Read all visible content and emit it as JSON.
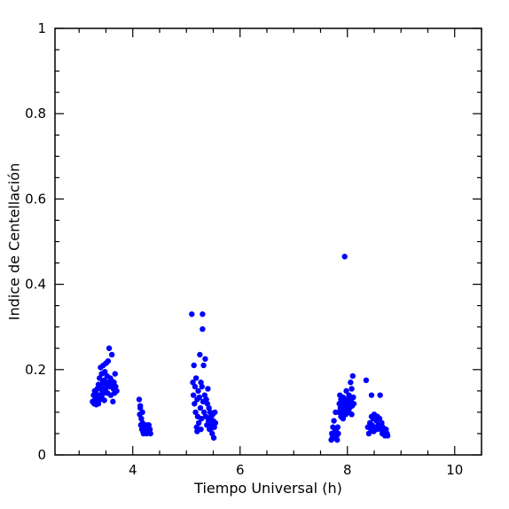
{
  "chart_data": {
    "type": "scatter",
    "xlabel": "Tiempo Universal (h)",
    "ylabel": "Indice de Centellación",
    "xlim": [
      2.55,
      10.5
    ],
    "ylim": [
      0,
      1
    ],
    "x_ticks": [
      4,
      6,
      8,
      10
    ],
    "y_ticks": [
      0,
      0.2,
      0.4,
      0.6,
      0.8,
      1
    ],
    "x_tick_labels": [
      "4",
      "6",
      "8",
      "10"
    ],
    "y_tick_labels": [
      "0",
      "0.2",
      "0.4",
      "0.6",
      "0.8",
      "1"
    ],
    "grid": false,
    "legend": "none",
    "marker_color": "#0000ff",
    "series": [
      {
        "points": [
          [
            3.25,
            0.125
          ],
          [
            3.27,
            0.14
          ],
          [
            3.28,
            0.12
          ],
          [
            3.29,
            0.15
          ],
          [
            3.3,
            0.13
          ],
          [
            3.31,
            0.145
          ],
          [
            3.32,
            0.118
          ],
          [
            3.33,
            0.135
          ],
          [
            3.34,
            0.155
          ],
          [
            3.35,
            0.125
          ],
          [
            3.36,
            0.165
          ],
          [
            3.37,
            0.14
          ],
          [
            3.38,
            0.18
          ],
          [
            3.39,
            0.13
          ],
          [
            3.4,
            0.205
          ],
          [
            3.41,
            0.16
          ],
          [
            3.42,
            0.19
          ],
          [
            3.43,
            0.15
          ],
          [
            3.44,
            0.17
          ],
          [
            3.45,
            0.21
          ],
          [
            3.46,
            0.145
          ],
          [
            3.47,
            0.175
          ],
          [
            3.48,
            0.195
          ],
          [
            3.49,
            0.155
          ],
          [
            3.5,
            0.215
          ],
          [
            3.51,
            0.165
          ],
          [
            3.52,
            0.185
          ],
          [
            3.53,
            0.145
          ],
          [
            3.54,
            0.22
          ],
          [
            3.55,
            0.17
          ],
          [
            3.56,
            0.25
          ],
          [
            3.57,
            0.16
          ],
          [
            3.58,
            0.18
          ],
          [
            3.59,
            0.14
          ],
          [
            3.6,
            0.175
          ],
          [
            3.61,
            0.235
          ],
          [
            3.62,
            0.165
          ],
          [
            3.63,
            0.125
          ],
          [
            3.64,
            0.155
          ],
          [
            3.65,
            0.17
          ],
          [
            3.66,
            0.145
          ],
          [
            3.67,
            0.19
          ],
          [
            3.68,
            0.16
          ],
          [
            3.7,
            0.15
          ],
          [
            3.36,
            0.12
          ],
          [
            3.42,
            0.135
          ],
          [
            3.47,
            0.128
          ],
          [
            4.12,
            0.13
          ],
          [
            4.13,
            0.095
          ],
          [
            4.14,
            0.11
          ],
          [
            4.15,
            0.07
          ],
          [
            4.16,
            0.085
          ],
          [
            4.17,
            0.06
          ],
          [
            4.18,
            0.075
          ],
          [
            4.19,
            0.055
          ],
          [
            4.2,
            0.065
          ],
          [
            4.22,
            0.055
          ],
          [
            4.23,
            0.07
          ],
          [
            4.25,
            0.06
          ],
          [
            4.26,
            0.05
          ],
          [
            4.28,
            0.065
          ],
          [
            4.29,
            0.055
          ],
          [
            4.3,
            0.07
          ],
          [
            4.32,
            0.06
          ],
          [
            4.33,
            0.05
          ],
          [
            4.14,
            0.115
          ],
          [
            4.18,
            0.1
          ],
          [
            4.2,
            0.05
          ],
          [
            4.27,
            0.07
          ],
          [
            5.1,
            0.33
          ],
          [
            5.12,
            0.17
          ],
          [
            5.13,
            0.14
          ],
          [
            5.14,
            0.21
          ],
          [
            5.15,
            0.12
          ],
          [
            5.16,
            0.16
          ],
          [
            5.17,
            0.1
          ],
          [
            5.18,
            0.18
          ],
          [
            5.19,
            0.065
          ],
          [
            5.2,
            0.13
          ],
          [
            5.21,
            0.09
          ],
          [
            5.22,
            0.15
          ],
          [
            5.23,
            0.075
          ],
          [
            5.24,
            0.135
          ],
          [
            5.25,
            0.235
          ],
          [
            5.26,
            0.11
          ],
          [
            5.27,
            0.17
          ],
          [
            5.28,
            0.085
          ],
          [
            5.29,
            0.16
          ],
          [
            5.3,
            0.33
          ],
          [
            5.3,
            0.295
          ],
          [
            5.31,
            0.125
          ],
          [
            5.32,
            0.21
          ],
          [
            5.33,
            0.1
          ],
          [
            5.34,
            0.14
          ],
          [
            5.35,
            0.225
          ],
          [
            5.36,
            0.09
          ],
          [
            5.37,
            0.13
          ],
          [
            5.38,
            0.07
          ],
          [
            5.39,
            0.12
          ],
          [
            5.4,
            0.155
          ],
          [
            5.41,
            0.08
          ],
          [
            5.42,
            0.11
          ],
          [
            5.43,
            0.06
          ],
          [
            5.44,
            0.1
          ],
          [
            5.45,
            0.085
          ],
          [
            5.46,
            0.09
          ],
          [
            5.47,
            0.07
          ],
          [
            5.48,
            0.05
          ],
          [
            5.49,
            0.095
          ],
          [
            5.5,
            0.08
          ],
          [
            5.51,
            0.04
          ],
          [
            5.52,
            0.065
          ],
          [
            5.53,
            0.1
          ],
          [
            5.54,
            0.075
          ],
          [
            5.2,
            0.055
          ],
          [
            5.27,
            0.06
          ],
          [
            5.45,
            0.06
          ],
          [
            7.7,
            0.035
          ],
          [
            7.71,
            0.05
          ],
          [
            7.72,
            0.04
          ],
          [
            7.73,
            0.065
          ],
          [
            7.74,
            0.045
          ],
          [
            7.75,
            0.08
          ],
          [
            7.76,
            0.04
          ],
          [
            7.77,
            0.055
          ],
          [
            7.78,
            0.1
          ],
          [
            7.79,
            0.06
          ],
          [
            7.8,
            0.045
          ],
          [
            7.81,
            0.035
          ],
          [
            7.82,
            0.065
          ],
          [
            7.83,
            0.05
          ],
          [
            7.84,
            0.1
          ],
          [
            7.85,
            0.12
          ],
          [
            7.86,
            0.14
          ],
          [
            7.87,
            0.11
          ],
          [
            7.88,
            0.13
          ],
          [
            7.89,
            0.1
          ],
          [
            7.9,
            0.125
          ],
          [
            7.91,
            0.115
          ],
          [
            7.92,
            0.135
          ],
          [
            7.93,
            0.105
          ],
          [
            7.94,
            0.12
          ],
          [
            7.95,
            0.465
          ],
          [
            7.96,
            0.11
          ],
          [
            7.97,
            0.13
          ],
          [
            7.98,
            0.15
          ],
          [
            7.99,
            0.115
          ],
          [
            8.0,
            0.13
          ],
          [
            8.01,
            0.105
          ],
          [
            8.02,
            0.12
          ],
          [
            8.03,
            0.14
          ],
          [
            8.04,
            0.11
          ],
          [
            8.05,
            0.125
          ],
          [
            8.06,
            0.17
          ],
          [
            8.07,
            0.13
          ],
          [
            8.08,
            0.155
          ],
          [
            8.09,
            0.115
          ],
          [
            8.1,
            0.185
          ],
          [
            8.11,
            0.135
          ],
          [
            8.12,
            0.12
          ],
          [
            7.88,
            0.09
          ],
          [
            7.92,
            0.085
          ],
          [
            7.97,
            0.095
          ],
          [
            8.03,
            0.1
          ],
          [
            8.08,
            0.095
          ],
          [
            8.35,
            0.175
          ],
          [
            8.38,
            0.065
          ],
          [
            8.4,
            0.05
          ],
          [
            8.42,
            0.075
          ],
          [
            8.44,
            0.06
          ],
          [
            8.45,
            0.14
          ],
          [
            8.46,
            0.07
          ],
          [
            8.48,
            0.085
          ],
          [
            8.49,
            0.055
          ],
          [
            8.5,
            0.095
          ],
          [
            8.52,
            0.065
          ],
          [
            8.54,
            0.08
          ],
          [
            8.55,
            0.06
          ],
          [
            8.56,
            0.09
          ],
          [
            8.58,
            0.07
          ],
          [
            8.6,
            0.085
          ],
          [
            8.61,
            0.14
          ],
          [
            8.62,
            0.06
          ],
          [
            8.64,
            0.075
          ],
          [
            8.65,
            0.05
          ],
          [
            8.66,
            0.065
          ],
          [
            8.68,
            0.055
          ],
          [
            8.7,
            0.045
          ],
          [
            8.72,
            0.06
          ],
          [
            8.74,
            0.05
          ],
          [
            8.75,
            0.045
          ],
          [
            8.45,
            0.09
          ]
        ]
      }
    ]
  }
}
